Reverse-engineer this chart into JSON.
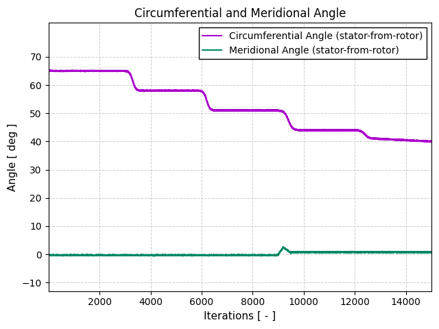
{
  "title": "Circumferential and Meridional Angle",
  "xlabel": "Iterations [ - ]",
  "ylabel": "Angle [ deg ]",
  "xlim": [
    0,
    15000
  ],
  "ylim": [
    -13,
    82
  ],
  "yticks": [
    -10,
    0,
    10,
    20,
    30,
    40,
    50,
    60,
    70
  ],
  "xticks": [
    2000,
    4000,
    6000,
    8000,
    10000,
    12000,
    14000
  ],
  "legend_labels": [
    "Circumferential Angle (stator-from-rotor)",
    "Meridional Angle (stator-from-rotor)"
  ],
  "circ_color": "#aa00cc",
  "merid_color": "#008866",
  "background_color": "#ffffff",
  "grid_color": "#cccccc",
  "title_fontsize": 12,
  "label_fontsize": 11,
  "tick_fontsize": 10,
  "legend_fontsize": 10,
  "line_width": 1.5
}
